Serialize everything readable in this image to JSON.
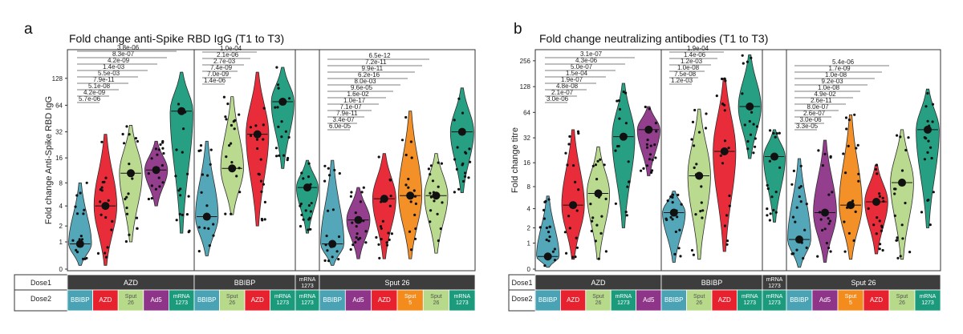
{
  "colors": {
    "BBIBP": "#4aa3b5",
    "AZD": "#e8212f",
    "Sput 26": "#b7d98a",
    "Ad5": "#8e3589",
    "mRNA 1273": "#1b9a7c",
    "Sput 5": "#f38b1d",
    "header_bg": "#3d3d3d",
    "header_text": "#ffffff"
  },
  "chart_data": [
    {
      "type": "violin",
      "panel_letter": "a",
      "title": "Fold change anti-Spike RBD IgG (T1 to T3)",
      "xlabel": "",
      "ylabel": "Fold change Anti-Spike RBD IgG",
      "y_scale": "log2(1+y)",
      "y_ticks": [
        "0",
        "1",
        "2",
        "4",
        "8",
        "16",
        "32",
        "64",
        "128"
      ],
      "y_tick_values": [
        0,
        1,
        2,
        4,
        8,
        16,
        32,
        64,
        128
      ],
      "ylim": [
        0,
        256
      ],
      "row_labels": [
        "Dose1",
        "Dose2"
      ],
      "groups": [
        {
          "dose1": "AZD",
          "categories": [
            {
              "label": "BBIBP",
              "vaccine": "BBIBP",
              "median": 0.9,
              "low": 0.1,
              "high": 8
            },
            {
              "label": "AZD",
              "vaccine": "AZD",
              "median": 4,
              "low": 0.1,
              "high": 30
            },
            {
              "label": "Sput 26",
              "vaccine": "Sput 26",
              "median": 10.5,
              "low": 1,
              "high": 38
            },
            {
              "label": "Ad5",
              "vaccine": "Ad5",
              "median": 11.5,
              "low": 4,
              "high": 25
            },
            {
              "label": "mRNA 1273",
              "vaccine": "mRNA 1273",
              "median": 55,
              "low": 1.5,
              "high": 150
            }
          ]
        },
        {
          "dose1": "BBIBP",
          "categories": [
            {
              "label": "BBIBP",
              "vaccine": "BBIBP",
              "median": 2.8,
              "low": 0.4,
              "high": 25
            },
            {
              "label": "Sput 26",
              "vaccine": "Sput 26",
              "median": 12,
              "low": 3,
              "high": 80
            },
            {
              "label": "AZD",
              "vaccine": "AZD",
              "median": 30,
              "low": 2,
              "high": 150
            },
            {
              "label": "mRNA 1273",
              "vaccine": "mRNA 1273",
              "median": 70,
              "low": 12,
              "high": 170
            }
          ]
        },
        {
          "dose1": "mRNA 1273",
          "categories": [
            {
              "label": "mRNA 1273",
              "vaccine": "mRNA 1273",
              "median": 7,
              "low": 1.5,
              "high": 15
            }
          ]
        },
        {
          "dose1": "Sput 26",
          "categories": [
            {
              "label": "BBIBP",
              "vaccine": "BBIBP",
              "median": 0.9,
              "low": 0.1,
              "high": 15
            },
            {
              "label": "Ad5",
              "vaccine": "Ad5",
              "median": 2.5,
              "low": 0.3,
              "high": 7
            },
            {
              "label": "AZD",
              "vaccine": "AZD",
              "median": 5,
              "low": 0.3,
              "high": 18
            },
            {
              "label": "Sput 5",
              "vaccine": "Sput 5",
              "median": 5.5,
              "low": 0.3,
              "high": 55
            },
            {
              "label": "Sput 26",
              "vaccine": "Sput 26",
              "median": 5.5,
              "low": 0.5,
              "high": 18
            },
            {
              "label": "mRNA 1273",
              "vaccine": "mRNA 1273",
              "median": 32,
              "low": 6,
              "high": 100
            }
          ]
        }
      ],
      "pvalues_group1": [
        "5.7e-06",
        "4.2e-09",
        "5.1e-08",
        "7.9e-11",
        "5.5e-03",
        "1.4e-03",
        "4.2e-09",
        "8.3e-07",
        "3.8e-06"
      ],
      "pvalues_group2": [
        "1.4e-06",
        "7.0e-09",
        "7.4e-09",
        "2.7e-03",
        "2.1e-06",
        "1.0e-04"
      ],
      "pvalues_group4": [
        "6.0e-05",
        "3.4e-07",
        "7.9e-11",
        "7.1e-07",
        "1.0e-17",
        "1.6e-02",
        "9.6e-05",
        "8.0e-03",
        "6.2e-16",
        "9.9e-11",
        "7.2e-11",
        "6.5e-12"
      ]
    },
    {
      "type": "violin",
      "panel_letter": "b",
      "title": "Fold change neutralizing antibodies (T1 to T3)",
      "xlabel": "",
      "ylabel": "Fold change titre",
      "y_scale": "log2(1+y)",
      "y_ticks": [
        "0",
        "1",
        "2",
        "4",
        "8",
        "16",
        "32",
        "64",
        "128",
        "256"
      ],
      "y_tick_values": [
        0,
        1,
        2,
        4,
        8,
        16,
        32,
        64,
        128,
        256
      ],
      "ylim": [
        0,
        330
      ],
      "row_labels": [
        "Dose1",
        "Dose2"
      ],
      "groups": [
        {
          "dose1": "AZD",
          "categories": [
            {
              "label": "BBIBP",
              "vaccine": "BBIBP",
              "median": 0.4,
              "low": 0.05,
              "high": 6
            },
            {
              "label": "AZD",
              "vaccine": "AZD",
              "median": 4.5,
              "low": 0.3,
              "high": 40
            },
            {
              "label": "Sput 26",
              "vaccine": "Sput 26",
              "median": 6.5,
              "low": 0.3,
              "high": 25
            },
            {
              "label": "mRNA 1273",
              "vaccine": "mRNA 1273",
              "median": 33,
              "low": 2,
              "high": 140
            },
            {
              "label": "Ad5",
              "vaccine": "Ad5",
              "median": 40,
              "low": 11,
              "high": 75
            }
          ]
        },
        {
          "dose1": "BBIBP",
          "categories": [
            {
              "label": "BBIBP",
              "vaccine": "BBIBP",
              "median": 3.5,
              "low": 0.2,
              "high": 7
            },
            {
              "label": "Sput 26",
              "vaccine": "Sput 26",
              "median": 11,
              "low": 0.3,
              "high": 70
            },
            {
              "label": "AZD",
              "vaccine": "AZD",
              "median": 22,
              "low": 0.6,
              "high": 160
            },
            {
              "label": "mRNA 1273",
              "vaccine": "mRNA 1273",
              "median": 75,
              "low": 18,
              "high": 300
            }
          ]
        },
        {
          "dose1": "mRNA 1273",
          "categories": [
            {
              "label": "mRNA 1273",
              "vaccine": "mRNA 1273",
              "median": 19,
              "low": 2.5,
              "high": 40
            }
          ]
        },
        {
          "dose1": "Sput 26",
          "categories": [
            {
              "label": "BBIBP",
              "vaccine": "BBIBP",
              "median": 1.2,
              "low": 0.05,
              "high": 18
            },
            {
              "label": "Ad5",
              "vaccine": "Ad5",
              "median": 3.5,
              "low": 0.2,
              "high": 30
            },
            {
              "label": "Sput 5",
              "vaccine": "Sput 5",
              "median": 4.5,
              "low": 0.3,
              "high": 60
            },
            {
              "label": "AZD",
              "vaccine": "AZD",
              "median": 5,
              "low": 0.5,
              "high": 15
            },
            {
              "label": "Sput 26",
              "vaccine": "Sput 26",
              "median": 9,
              "low": 0.3,
              "high": 40
            },
            {
              "label": "mRNA 1273",
              "vaccine": "mRNA 1273",
              "median": 40,
              "low": 2,
              "high": 120
            }
          ]
        }
      ],
      "pvalues_group1": [
        "3.0e-06",
        "2.1e-07",
        "4.8e-08",
        "1.9e-07",
        "1.5e-04",
        "5.0e-07",
        "4.3e-06",
        "3.1e-07"
      ],
      "pvalues_group2": [
        "1.2e-03",
        "7.5e-08",
        "1.0e-08",
        "1.2e-03",
        "1.4e-06",
        "1.9e-04"
      ],
      "pvalues_group4": [
        "3.3e-05",
        "3.0e-06",
        "2.6e-07",
        "8.0e-07",
        "2.6e-11",
        "4.9e-02",
        "1.0e-08",
        "9.2e-03",
        "1.0e-08",
        "1.7e-09",
        "5.4e-06"
      ]
    }
  ]
}
